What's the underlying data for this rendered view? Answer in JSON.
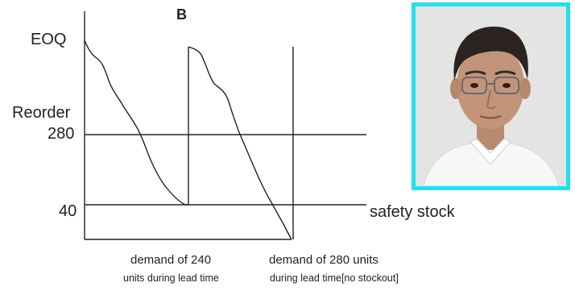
{
  "figure": {
    "panel_letter": "B",
    "y_labels": {
      "eoq": "EOQ",
      "reorder": "Reorder",
      "reorder_value": "280",
      "safety_value": "40"
    },
    "safety_stock_label": "safety stock",
    "captions": {
      "left_line1": "demand of 240",
      "left_line2": "units during lead time",
      "right_line1": "demand of 280 units",
      "right_line2": "during lead time[no stockout]"
    },
    "colors": {
      "ink": "#222222",
      "photo_border": "#22e1ea"
    }
  },
  "photo": {
    "description_icon": "person-portrait-icon"
  }
}
